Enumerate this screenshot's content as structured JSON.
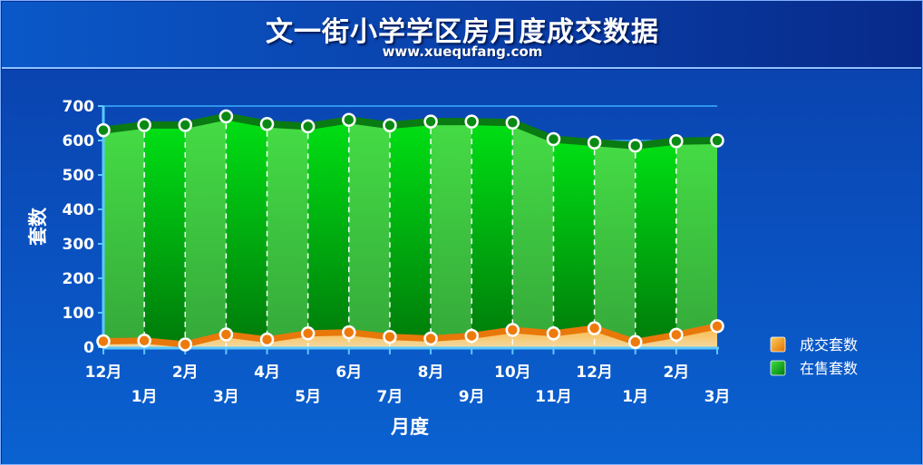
{
  "header": {
    "title": "文一街小学学区房月度成交数据",
    "subtitle": "www.xuequfang.com"
  },
  "chart_data": {
    "type": "area",
    "title": "文一街小学学区房月度成交数据",
    "subtitle": "www.xuequfang.com",
    "xlabel": "月度",
    "ylabel": "套数",
    "ylim": [
      0,
      700
    ],
    "yticks": [
      0,
      100,
      200,
      300,
      400,
      500,
      600,
      700
    ],
    "categories": [
      "12月",
      "1月",
      "2月",
      "3月",
      "4月",
      "5月",
      "6月",
      "7月",
      "8月",
      "9月",
      "10月",
      "11月",
      "12月",
      "1月",
      "2月",
      "3月"
    ],
    "series": [
      {
        "name": "成交套数",
        "color": "#f08a10",
        "values": [
          17,
          19,
          8,
          37,
          22,
          40,
          43,
          30,
          25,
          33,
          50,
          40,
          55,
          15,
          36,
          61
        ]
      },
      {
        "name": "在售套数",
        "color": "#0a9a1a",
        "values": [
          630,
          645,
          645,
          670,
          648,
          641,
          660,
          644,
          655,
          655,
          652,
          604,
          594,
          585,
          598,
          600
        ]
      }
    ],
    "legend_position": "right",
    "grid": false
  }
}
